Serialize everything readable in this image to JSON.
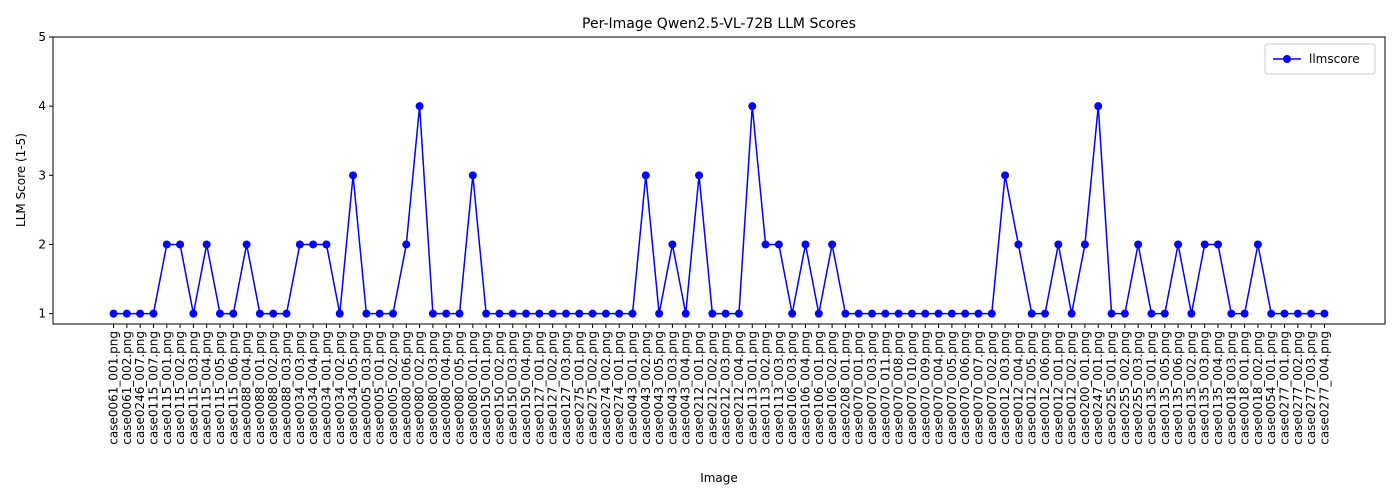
{
  "chart_data": {
    "type": "line",
    "title": "Per-Image Qwen2.5-VL-72B LLM Scores",
    "xlabel": "Image",
    "ylabel": "LLM Score (1-5)",
    "categories": [
      "case0061_001.png",
      "case0061_002.png",
      "case0246_007.png",
      "case0115_007.png",
      "case0115_001.png",
      "case0115_002.png",
      "case0115_003.png",
      "case0115_004.png",
      "case0115_005.png",
      "case0115_006.png",
      "case0088_004.png",
      "case0088_001.png",
      "case0088_002.png",
      "case0088_003.png",
      "case0034_003.png",
      "case0034_004.png",
      "case0034_001.png",
      "case0034_002.png",
      "case0034_005.png",
      "case0005_003.png",
      "case0005_001.png",
      "case0005_002.png",
      "case0080_006.png",
      "case0080_002.png",
      "case0080_003.png",
      "case0080_004.png",
      "case0080_005.png",
      "case0080_001.png",
      "case0150_001.png",
      "case0150_002.png",
      "case0150_003.png",
      "case0150_004.png",
      "case0127_001.png",
      "case0127_002.png",
      "case0127_003.png",
      "case0275_001.png",
      "case0275_002.png",
      "case0274_002.png",
      "case0274_001.png",
      "case0043_001.png",
      "case0043_002.png",
      "case0043_005.png",
      "case0043_003.png",
      "case0043_004.png",
      "case0212_001.png",
      "case0212_002.png",
      "case0212_003.png",
      "case0212_004.png",
      "case0113_001.png",
      "case0113_002.png",
      "case0113_003.png",
      "case0106_003.png",
      "case0106_004.png",
      "case0106_001.png",
      "case0106_002.png",
      "case0208_001.png",
      "case0070_001.png",
      "case0070_003.png",
      "case0070_011.png",
      "case0070_008.png",
      "case0070_010.png",
      "case0070_009.png",
      "case0070_004.png",
      "case0070_005.png",
      "case0070_006.png",
      "case0070_007.png",
      "case0070_002.png",
      "case0012_003.png",
      "case0012_004.png",
      "case0012_005.png",
      "case0012_006.png",
      "case0012_001.png",
      "case0012_002.png",
      "case0200_001.png",
      "case0247_001.png",
      "case0255_001.png",
      "case0255_002.png",
      "case0255_003.png",
      "case0135_001.png",
      "case0135_005.png",
      "case0135_006.png",
      "case0135_002.png",
      "case0135_003.png",
      "case0135_004.png",
      "case0018_003.png",
      "case0018_001.png",
      "case0018_002.png",
      "case0054_001.png",
      "case0277_001.png",
      "case0277_002.png",
      "case0277_003.png",
      "case0277_004.png"
    ],
    "series": [
      {
        "name": "llmscore",
        "color": "#0000ff",
        "values": [
          1,
          1,
          1,
          1,
          2,
          2,
          1,
          2,
          1,
          1,
          2,
          1,
          1,
          1,
          2,
          2,
          2,
          1,
          3,
          1,
          1,
          1,
          2,
          4,
          1,
          1,
          1,
          3,
          1,
          1,
          1,
          1,
          1,
          1,
          1,
          1,
          1,
          1,
          1,
          1,
          3,
          1,
          2,
          1,
          3,
          1,
          1,
          1,
          4,
          2,
          2,
          1,
          2,
          1,
          2,
          1,
          1,
          1,
          1,
          1,
          1,
          1,
          1,
          1,
          1,
          1,
          1,
          3,
          2,
          1,
          1,
          2,
          1,
          2,
          4,
          1,
          1,
          2,
          1,
          1,
          2,
          1,
          2,
          2,
          1,
          1,
          2,
          1,
          1,
          1,
          1,
          1
        ]
      }
    ],
    "ylim": [
      0.85,
      5
    ],
    "yticks": [
      1,
      2,
      3,
      4,
      5
    ],
    "grid": false,
    "legend": "upper right"
  }
}
